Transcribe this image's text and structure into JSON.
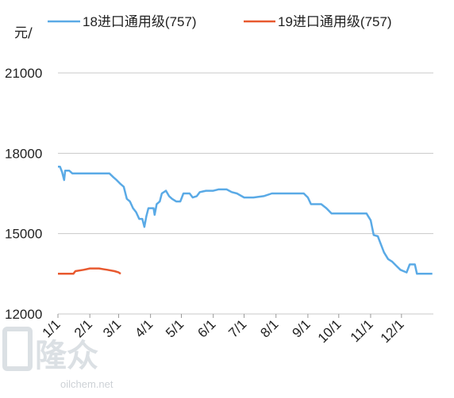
{
  "chart_data": {
    "type": "line",
    "ylabel": "元/",
    "ylim": [
      12000,
      21000
    ],
    "yticks": [
      "12000",
      "15000",
      "18000",
      "21000"
    ],
    "xticks": [
      "1/1",
      "2/1",
      "3/1",
      "4/1",
      "5/1",
      "6/1",
      "7/1",
      "8/1",
      "9/1",
      "10/1",
      "11/1",
      "12/1"
    ],
    "grid": true,
    "legend_position": "top",
    "series": [
      {
        "name": "18进口通用级(757)",
        "color": "#5aaae6",
        "points": [
          [
            "1/1",
            17500
          ],
          [
            "1/3",
            17500
          ],
          [
            "1/5",
            17300
          ],
          [
            "1/7",
            17000
          ],
          [
            "1/8",
            17350
          ],
          [
            "1/12",
            17350
          ],
          [
            "1/15",
            17250
          ],
          [
            "1/20",
            17250
          ],
          [
            "2/1",
            17250
          ],
          [
            "2/10",
            17250
          ],
          [
            "2/20",
            17250
          ],
          [
            "2/24",
            17100
          ],
          [
            "2/27",
            17000
          ],
          [
            "3/3",
            16850
          ],
          [
            "3/6",
            16750
          ],
          [
            "3/9",
            16300
          ],
          [
            "3/12",
            16200
          ],
          [
            "3/15",
            15950
          ],
          [
            "3/18",
            15800
          ],
          [
            "3/21",
            15550
          ],
          [
            "3/24",
            15550
          ],
          [
            "3/26",
            15250
          ],
          [
            "3/28",
            15650
          ],
          [
            "3/30",
            15950
          ],
          [
            "4/4",
            15950
          ],
          [
            "4/5",
            15700
          ],
          [
            "4/7",
            16100
          ],
          [
            "4/10",
            16200
          ],
          [
            "4/12",
            16500
          ],
          [
            "4/16",
            16600
          ],
          [
            "4/19",
            16400
          ],
          [
            "4/22",
            16300
          ],
          [
            "4/26",
            16200
          ],
          [
            "4/30",
            16200
          ],
          [
            "5/3",
            16500
          ],
          [
            "5/9",
            16500
          ],
          [
            "5/12",
            16350
          ],
          [
            "5/16",
            16400
          ],
          [
            "5/19",
            16550
          ],
          [
            "5/25",
            16600
          ],
          [
            "6/1",
            16600
          ],
          [
            "6/6",
            16650
          ],
          [
            "6/14",
            16650
          ],
          [
            "6/19",
            16550
          ],
          [
            "6/24",
            16500
          ],
          [
            "7/1",
            16350
          ],
          [
            "7/10",
            16350
          ],
          [
            "7/20",
            16400
          ],
          [
            "7/28",
            16500
          ],
          [
            "8/10",
            16500
          ],
          [
            "8/20",
            16500
          ],
          [
            "8/28",
            16500
          ],
          [
            "9/1",
            16350
          ],
          [
            "9/4",
            16100
          ],
          [
            "9/14",
            16100
          ],
          [
            "9/19",
            15950
          ],
          [
            "9/24",
            15750
          ],
          [
            "10/1",
            15750
          ],
          [
            "10/12",
            15750
          ],
          [
            "10/22",
            15750
          ],
          [
            "10/28",
            15750
          ],
          [
            "11/1",
            15500
          ],
          [
            "11/4",
            14950
          ],
          [
            "11/8",
            14900
          ],
          [
            "11/11",
            14600
          ],
          [
            "11/14",
            14300
          ],
          [
            "11/18",
            14050
          ],
          [
            "11/22",
            13950
          ],
          [
            "11/26",
            13800
          ],
          [
            "11/30",
            13650
          ],
          [
            "12/3",
            13600
          ],
          [
            "12/6",
            13550
          ],
          [
            "12/9",
            13850
          ],
          [
            "12/14",
            13850
          ],
          [
            "12/16",
            13500
          ],
          [
            "12/23",
            13500
          ],
          [
            "12/31",
            13500
          ]
        ]
      },
      {
        "name": "19进口通用级(757)",
        "color": "#e8592f",
        "points": [
          [
            "1/1",
            13500
          ],
          [
            "1/10",
            13500
          ],
          [
            "1/16",
            13500
          ],
          [
            "1/18",
            13600
          ],
          [
            "1/26",
            13650
          ],
          [
            "2/1",
            13700
          ],
          [
            "2/10",
            13700
          ],
          [
            "2/18",
            13650
          ],
          [
            "2/25",
            13600
          ],
          [
            "3/1",
            13550
          ],
          [
            "3/3",
            13500
          ]
        ]
      }
    ]
  },
  "watermark": {
    "logo": "隆众",
    "url": "oilchem.net"
  }
}
